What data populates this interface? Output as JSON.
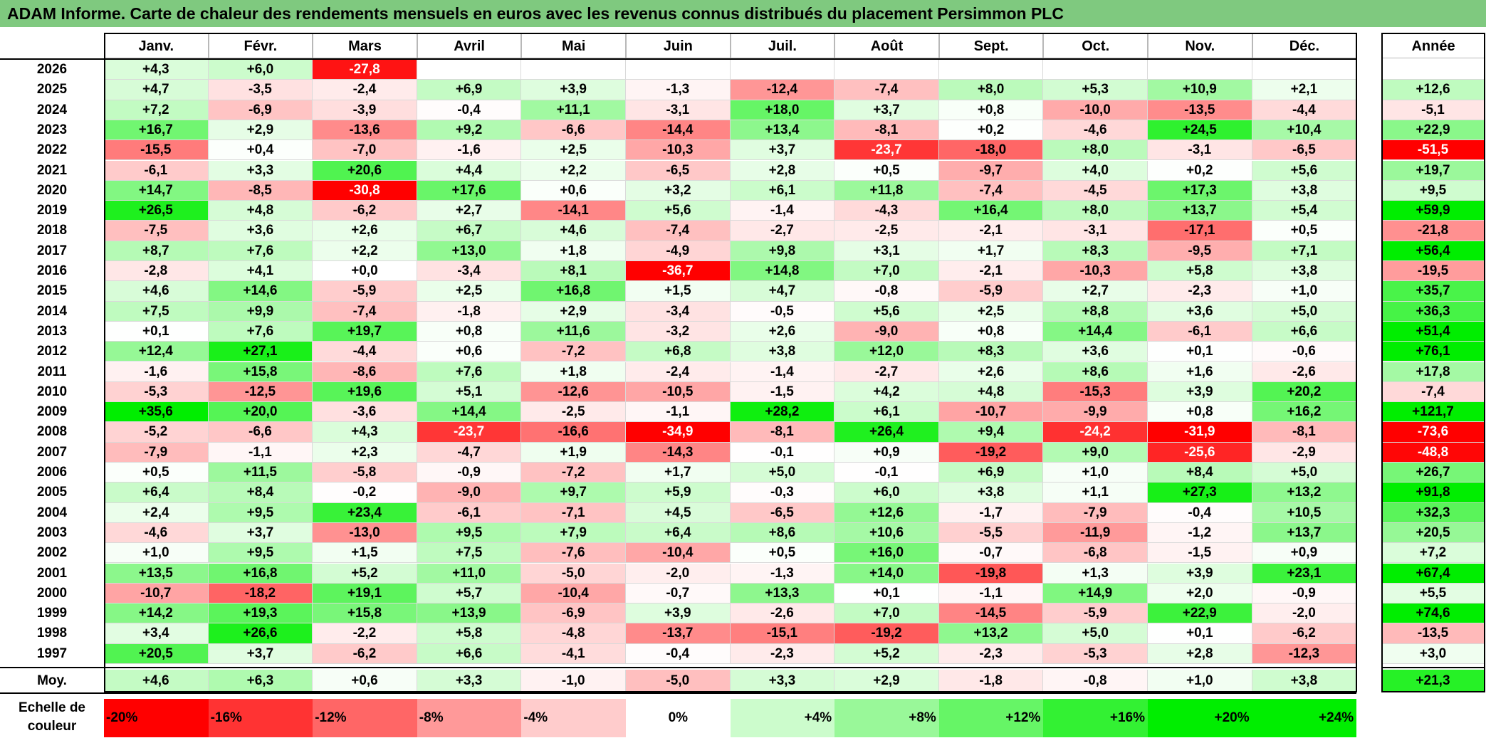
{
  "title": "ADAM Informe. Carte de chaleur des rendements mensuels en euros avec les revenus connus distribués du placement Persimmon PLC",
  "chart_data": {
    "type": "heatmap",
    "months": [
      "Janv.",
      "Févr.",
      "Mars",
      "Avril",
      "Mai",
      "Juin",
      "Juil.",
      "Août",
      "Sept.",
      "Oct.",
      "Nov.",
      "Déc."
    ],
    "year_header": "Année",
    "rows": [
      {
        "year": "2026",
        "values": [
          "+4,3",
          "+6,0",
          "-27,8",
          "",
          "",
          "",
          "",
          "",
          "",
          "",
          "",
          ""
        ],
        "annual": ""
      },
      {
        "year": "2025",
        "values": [
          "+4,7",
          "-3,5",
          "-2,4",
          "+6,9",
          "+3,9",
          "-1,3",
          "-12,4",
          "-7,4",
          "+8,0",
          "+5,3",
          "+10,9",
          "+2,1"
        ],
        "annual": "+12,6"
      },
      {
        "year": "2024",
        "values": [
          "+7,2",
          "-6,9",
          "-3,9",
          "-0,4",
          "+11,1",
          "-3,1",
          "+18,0",
          "+3,7",
          "+0,8",
          "-10,0",
          "-13,5",
          "-4,4"
        ],
        "annual": "-5,1"
      },
      {
        "year": "2023",
        "values": [
          "+16,7",
          "+2,9",
          "-13,6",
          "+9,2",
          "-6,6",
          "-14,4",
          "+13,4",
          "-8,1",
          "+0,2",
          "-4,6",
          "+24,5",
          "+10,4"
        ],
        "annual": "+22,9"
      },
      {
        "year": "2022",
        "values": [
          "-15,5",
          "+0,4",
          "-7,0",
          "-1,6",
          "+2,5",
          "-10,3",
          "+3,7",
          "-23,7",
          "-18,0",
          "+8,0",
          "-3,1",
          "-6,5"
        ],
        "annual": "-51,5"
      },
      {
        "year": "2021",
        "values": [
          "-6,1",
          "+3,3",
          "+20,6",
          "+4,4",
          "+2,2",
          "-6,5",
          "+2,8",
          "+0,5",
          "-9,7",
          "+4,0",
          "+0,2",
          "+5,6"
        ],
        "annual": "+19,7"
      },
      {
        "year": "2020",
        "values": [
          "+14,7",
          "-8,5",
          "-30,8",
          "+17,6",
          "+0,6",
          "+3,2",
          "+6,1",
          "+11,8",
          "-7,4",
          "-4,5",
          "+17,3",
          "+3,8"
        ],
        "annual": "+9,5"
      },
      {
        "year": "2019",
        "values": [
          "+26,5",
          "+4,8",
          "-6,2",
          "+2,7",
          "-14,1",
          "+5,6",
          "-1,4",
          "-4,3",
          "+16,4",
          "+8,0",
          "+13,7",
          "+5,4"
        ],
        "annual": "+59,9"
      },
      {
        "year": "2018",
        "values": [
          "-7,5",
          "+3,6",
          "+2,6",
          "+6,7",
          "+4,6",
          "-7,4",
          "-2,7",
          "-2,5",
          "-2,1",
          "-3,1",
          "-17,1",
          "+0,5"
        ],
        "annual": "-21,8"
      },
      {
        "year": "2017",
        "values": [
          "+8,7",
          "+7,6",
          "+2,2",
          "+13,0",
          "+1,8",
          "-4,9",
          "+9,8",
          "+3,1",
          "+1,7",
          "+8,3",
          "-9,5",
          "+7,1"
        ],
        "annual": "+56,4"
      },
      {
        "year": "2016",
        "values": [
          "-2,8",
          "+4,1",
          "+0,0",
          "-3,4",
          "+8,1",
          "-36,7",
          "+14,8",
          "+7,0",
          "-2,1",
          "-10,3",
          "+5,8",
          "+3,8"
        ],
        "annual": "-19,5"
      },
      {
        "year": "2015",
        "values": [
          "+4,6",
          "+14,6",
          "-5,9",
          "+2,5",
          "+16,8",
          "+1,5",
          "+4,7",
          "-0,8",
          "-5,9",
          "+2,7",
          "-2,3",
          "+1,0"
        ],
        "annual": "+35,7"
      },
      {
        "year": "2014",
        "values": [
          "+7,5",
          "+9,9",
          "-7,4",
          "-1,8",
          "+2,9",
          "-3,4",
          "-0,5",
          "+5,6",
          "+2,5",
          "+8,8",
          "+3,6",
          "+5,0"
        ],
        "annual": "+36,3"
      },
      {
        "year": "2013",
        "values": [
          "+0,1",
          "+7,6",
          "+19,7",
          "+0,8",
          "+11,6",
          "-3,2",
          "+2,6",
          "-9,0",
          "+0,8",
          "+14,4",
          "-6,1",
          "+6,6"
        ],
        "annual": "+51,4"
      },
      {
        "year": "2012",
        "values": [
          "+12,4",
          "+27,1",
          "-4,4",
          "+0,6",
          "-7,2",
          "+6,8",
          "+3,8",
          "+12,0",
          "+8,3",
          "+3,6",
          "+0,1",
          "-0,6"
        ],
        "annual": "+76,1"
      },
      {
        "year": "2011",
        "values": [
          "-1,6",
          "+15,8",
          "-8,6",
          "+7,6",
          "+1,8",
          "-2,4",
          "-1,4",
          "-2,7",
          "+2,6",
          "+8,6",
          "+1,6",
          "-2,6"
        ],
        "annual": "+17,8"
      },
      {
        "year": "2010",
        "values": [
          "-5,3",
          "-12,5",
          "+19,6",
          "+5,1",
          "-12,6",
          "-10,5",
          "-1,5",
          "+4,2",
          "+4,8",
          "-15,3",
          "+3,9",
          "+20,2"
        ],
        "annual": "-7,4"
      },
      {
        "year": "2009",
        "values": [
          "+35,6",
          "+20,0",
          "-3,6",
          "+14,4",
          "-2,5",
          "-1,1",
          "+28,2",
          "+6,1",
          "-10,7",
          "-9,9",
          "+0,8",
          "+16,2"
        ],
        "annual": "+121,7"
      },
      {
        "year": "2008",
        "values": [
          "-5,2",
          "-6,6",
          "+4,3",
          "-23,7",
          "-16,6",
          "-34,9",
          "-8,1",
          "+26,4",
          "+9,4",
          "-24,2",
          "-31,9",
          "-8,1"
        ],
        "annual": "-73,6"
      },
      {
        "year": "2007",
        "values": [
          "-7,9",
          "-1,1",
          "+2,3",
          "-4,7",
          "+1,9",
          "-14,3",
          "-0,1",
          "+0,9",
          "-19,2",
          "+9,0",
          "-25,6",
          "-2,9"
        ],
        "annual": "-48,8"
      },
      {
        "year": "2006",
        "values": [
          "+0,5",
          "+11,5",
          "-5,8",
          "-0,9",
          "-7,2",
          "+1,7",
          "+5,0",
          "-0,1",
          "+6,9",
          "+1,0",
          "+8,4",
          "+5,0"
        ],
        "annual": "+26,7"
      },
      {
        "year": "2005",
        "values": [
          "+6,4",
          "+8,4",
          "-0,2",
          "-9,0",
          "+9,7",
          "+5,9",
          "-0,3",
          "+6,0",
          "+3,8",
          "+1,1",
          "+27,3",
          "+13,2"
        ],
        "annual": "+91,8"
      },
      {
        "year": "2004",
        "values": [
          "+2,4",
          "+9,5",
          "+23,4",
          "-6,1",
          "-7,1",
          "+4,5",
          "-6,5",
          "+12,6",
          "-1,7",
          "-7,9",
          "-0,4",
          "+10,5"
        ],
        "annual": "+32,3"
      },
      {
        "year": "2003",
        "values": [
          "-4,6",
          "+3,7",
          "-13,0",
          "+9,5",
          "+7,9",
          "+6,4",
          "+8,6",
          "+10,6",
          "-5,5",
          "-11,9",
          "-1,2",
          "+13,7"
        ],
        "annual": "+20,5"
      },
      {
        "year": "2002",
        "values": [
          "+1,0",
          "+9,5",
          "+1,5",
          "+7,5",
          "-7,6",
          "-10,4",
          "+0,5",
          "+16,0",
          "-0,7",
          "-6,8",
          "-1,5",
          "+0,9"
        ],
        "annual": "+7,2"
      },
      {
        "year": "2001",
        "values": [
          "+13,5",
          "+16,8",
          "+5,2",
          "+11,0",
          "-5,0",
          "-2,0",
          "-1,3",
          "+14,0",
          "-19,8",
          "+1,3",
          "+3,9",
          "+23,1"
        ],
        "annual": "+67,4"
      },
      {
        "year": "2000",
        "values": [
          "-10,7",
          "-18,2",
          "+19,1",
          "+5,7",
          "-10,4",
          "-0,7",
          "+13,3",
          "+0,1",
          "-1,1",
          "+14,9",
          "+2,0",
          "-0,9"
        ],
        "annual": "+5,5"
      },
      {
        "year": "1999",
        "values": [
          "+14,2",
          "+19,3",
          "+15,8",
          "+13,9",
          "-6,9",
          "+3,9",
          "-2,6",
          "+7,0",
          "-14,5",
          "-5,9",
          "+22,9",
          "-2,0"
        ],
        "annual": "+74,6"
      },
      {
        "year": "1998",
        "values": [
          "+3,4",
          "+26,6",
          "-2,2",
          "+5,8",
          "-4,8",
          "-13,7",
          "-15,1",
          "-19,2",
          "+13,2",
          "+5,0",
          "+0,1",
          "-6,2"
        ],
        "annual": "-13,5"
      },
      {
        "year": "1997",
        "values": [
          "+20,5",
          "+3,7",
          "-6,2",
          "+6,6",
          "-4,1",
          "-0,4",
          "-2,3",
          "+5,2",
          "-2,3",
          "-5,3",
          "+2,8",
          "-12,3"
        ],
        "annual": "+3,0"
      }
    ],
    "average": {
      "label": "Moy.",
      "values": [
        "+4,6",
        "+6,3",
        "+0,6",
        "+3,3",
        "-1,0",
        "-5,0",
        "+3,3",
        "+2,9",
        "-1,8",
        "-0,8",
        "+1,0",
        "+3,8"
      ],
      "annual": "+21,3"
    },
    "color_scale": {
      "label": "Echelle de couleur",
      "steps": [
        "-20%",
        "-16%",
        "-12%",
        "-8%",
        "-4%",
        "0%",
        "+4%",
        "+8%",
        "+12%",
        "+16%",
        "+20%",
        "+24%"
      ]
    }
  },
  "colors": {
    "title_bg": "#7fc97f",
    "max_negative": "#ff0000",
    "neutral": "#ffffff",
    "max_positive": "#00ee00"
  }
}
